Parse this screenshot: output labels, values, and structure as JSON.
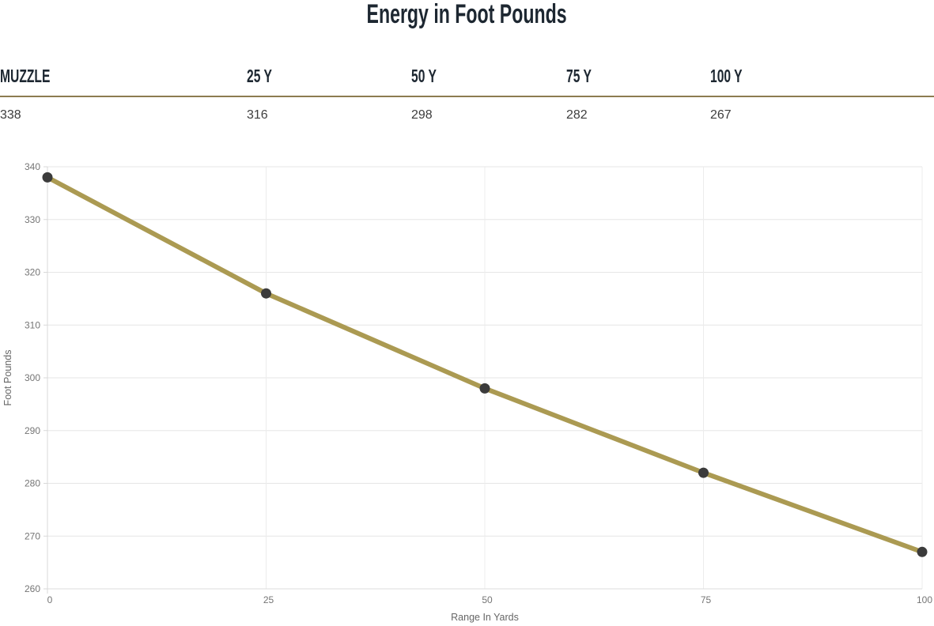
{
  "header": {
    "title": "Energy in Foot Pounds"
  },
  "table": {
    "headers": [
      "MUZZLE",
      "25 Y",
      "50 Y",
      "75 Y",
      "100 Y"
    ],
    "values": [
      "338",
      "316",
      "298",
      "282",
      "267"
    ]
  },
  "chart_data": {
    "type": "line",
    "title": "Energy in Foot Pounds",
    "x": [
      0,
      25,
      50,
      75,
      100
    ],
    "series": [
      {
        "name": "Energy",
        "values": [
          338,
          316,
          298,
          282,
          267
        ]
      }
    ],
    "xlabel": "Range In Yards",
    "ylabel": "Foot Pounds",
    "xlim": [
      0,
      100
    ],
    "ylim": [
      260,
      340
    ],
    "xticks": [
      0,
      25,
      50,
      75,
      100
    ],
    "yticks": [
      260,
      270,
      280,
      290,
      300,
      310,
      320,
      330,
      340
    ],
    "grid": true,
    "legend_position": "none",
    "line_color": "#ab9a52",
    "point_color": "#3b3b3b"
  },
  "colors": {
    "title_text": "#1d2731",
    "table_rule_gold": "#8c7b50",
    "line_gold": "#ab9a52",
    "point_dark": "#3b3b3b",
    "grid_gray": "#e6e6e6",
    "tick_gray": "#757575"
  }
}
